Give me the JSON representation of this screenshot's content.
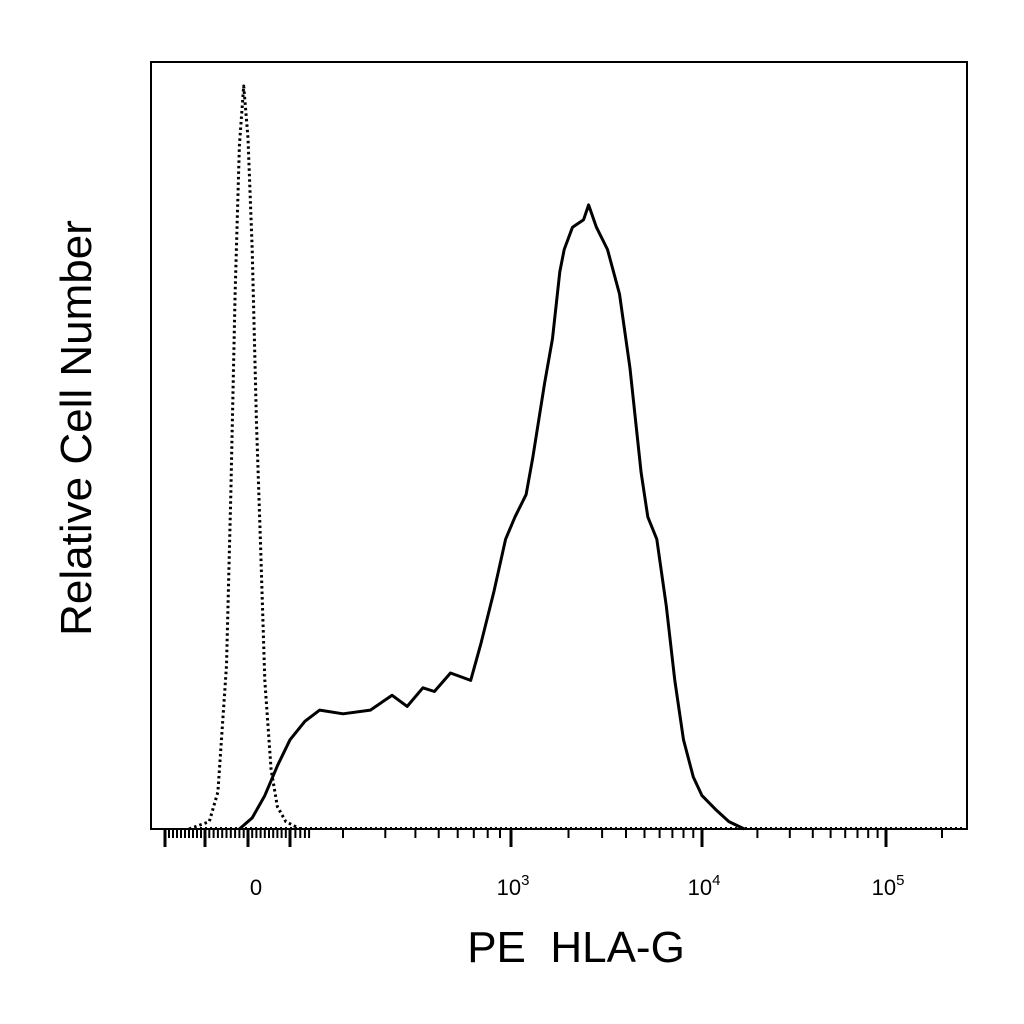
{
  "chart_data": {
    "type": "area",
    "title": "",
    "xlabel": "PE  HLA-G",
    "ylabel": "Relative Cell Number",
    "x_scale": "biexponential (logicle)",
    "xlim": [
      -200,
      200000
    ],
    "ylim": [
      0,
      1
    ],
    "grid": false,
    "legend": "none",
    "x_tick_labels": [
      {
        "value": 0,
        "base": "0",
        "exp": ""
      },
      {
        "value": 1000,
        "base": "10",
        "exp": "3"
      },
      {
        "value": 10000,
        "base": "10",
        "exp": "4"
      },
      {
        "value": 100000,
        "base": "10",
        "exp": "5"
      }
    ],
    "series": [
      {
        "style": "dotted",
        "color": "#000000",
        "points": [
          [
            -140,
            0.0
          ],
          [
            -90,
            0.01
          ],
          [
            -70,
            0.05
          ],
          [
            -50,
            0.22
          ],
          [
            -40,
            0.45
          ],
          [
            -30,
            0.72
          ],
          [
            -20,
            0.92
          ],
          [
            -10,
            1.0
          ],
          [
            0,
            0.93
          ],
          [
            10,
            0.78
          ],
          [
            20,
            0.55
          ],
          [
            30,
            0.38
          ],
          [
            40,
            0.2
          ],
          [
            55,
            0.08
          ],
          [
            70,
            0.03
          ],
          [
            90,
            0.01
          ],
          [
            120,
            0.0
          ]
        ]
      },
      {
        "style": "solid",
        "color": "#000000",
        "points": [
          [
            -20,
            0.0
          ],
          [
            10,
            0.015
          ],
          [
            40,
            0.045
          ],
          [
            70,
            0.085
          ],
          [
            100,
            0.12
          ],
          [
            130,
            0.145
          ],
          [
            160,
            0.16
          ],
          [
            200,
            0.155
          ],
          [
            260,
            0.16
          ],
          [
            320,
            0.18
          ],
          [
            370,
            0.165
          ],
          [
            430,
            0.19
          ],
          [
            480,
            0.185
          ],
          [
            560,
            0.21
          ],
          [
            680,
            0.2
          ],
          [
            750,
            0.25
          ],
          [
            850,
            0.32
          ],
          [
            950,
            0.39
          ],
          [
            1050,
            0.42
          ],
          [
            1200,
            0.45
          ],
          [
            1300,
            0.5
          ],
          [
            1500,
            0.6
          ],
          [
            1650,
            0.66
          ],
          [
            1800,
            0.75
          ],
          [
            1900,
            0.78
          ],
          [
            2100,
            0.81
          ],
          [
            2400,
            0.82
          ],
          [
            2550,
            0.84
          ],
          [
            2800,
            0.81
          ],
          [
            3200,
            0.78
          ],
          [
            3700,
            0.72
          ],
          [
            4200,
            0.62
          ],
          [
            4800,
            0.48
          ],
          [
            5200,
            0.42
          ],
          [
            5800,
            0.39
          ],
          [
            6500,
            0.3
          ],
          [
            7200,
            0.2
          ],
          [
            8000,
            0.12
          ],
          [
            9000,
            0.07
          ],
          [
            10000,
            0.045
          ],
          [
            12000,
            0.025
          ],
          [
            14000,
            0.01
          ],
          [
            17000,
            0.0
          ]
        ]
      }
    ]
  }
}
